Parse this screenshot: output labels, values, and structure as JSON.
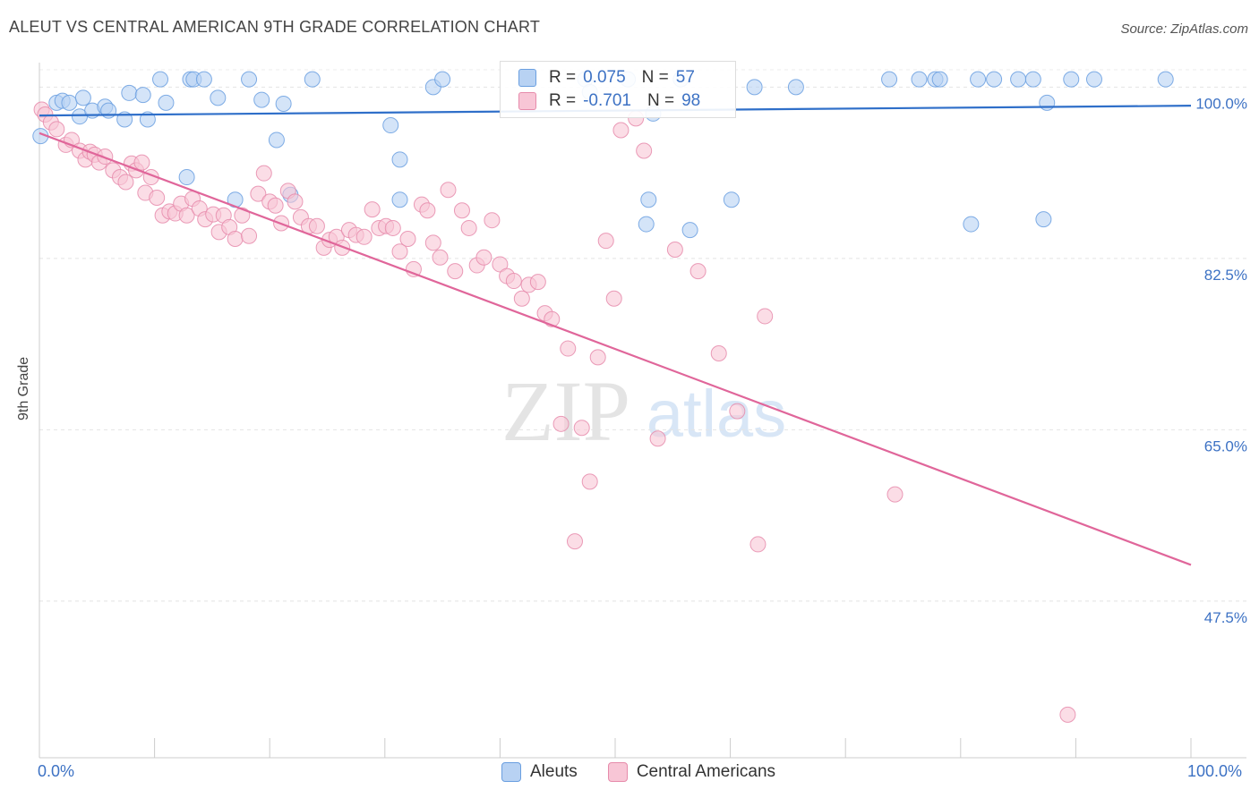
{
  "title": "ALEUT VS CENTRAL AMERICAN 9TH GRADE CORRELATION CHART",
  "source": "Source: ZipAtlas.com",
  "watermark": {
    "zip": "ZIP",
    "atlas": "atlas"
  },
  "colors": {
    "aleut": "#6a9fe0",
    "aleut_fill": "#b8d2f3",
    "aleut_line": "#2f6fc9",
    "central": "#e68bab",
    "central_fill": "#f8c6d6",
    "central_line": "#e0669a",
    "tick_label": "#3d72c4"
  },
  "legend": {
    "rows": [
      {
        "r_label": "R =",
        "r_value": "0.075",
        "n_label": "N =",
        "n_value": "57"
      },
      {
        "r_label": "R =",
        "r_value": "-0.701",
        "n_label": "N =",
        "n_value": "98"
      }
    ],
    "bottom": [
      "Aleuts",
      "Central Americans"
    ]
  },
  "chart_data": {
    "type": "scatter",
    "title": "ALEUT VS CENTRAL AMERICAN 9TH GRADE CORRELATION CHART",
    "xlabel": "",
    "ylabel": "9th Grade",
    "xlim": [
      0,
      100
    ],
    "ylim": [
      31.5,
      102.5
    ],
    "x_tick_labels": [
      "0.0%",
      "100.0%"
    ],
    "y_ticks": [
      {
        "value": 100,
        "label": "100.0%"
      },
      {
        "value": 82.5,
        "label": "82.5%"
      },
      {
        "value": 65,
        "label": "65.0%"
      },
      {
        "value": 47.5,
        "label": "47.5%"
      }
    ],
    "grid": true,
    "series": [
      {
        "name": "Aleuts",
        "r": 0.075,
        "n": 57,
        "trend": {
          "x": [
            0,
            100
          ],
          "y": [
            97.1,
            98.1
          ]
        },
        "points": [
          [
            0.1,
            95
          ],
          [
            1.5,
            98.4
          ],
          [
            2,
            98.6
          ],
          [
            2.6,
            98.4
          ],
          [
            3.5,
            97
          ],
          [
            3.8,
            98.9
          ],
          [
            4.6,
            97.6
          ],
          [
            5.7,
            98
          ],
          [
            6,
            97.6
          ],
          [
            7.4,
            96.7
          ],
          [
            7.8,
            99.4
          ],
          [
            9,
            99.2
          ],
          [
            9.4,
            96.7
          ],
          [
            10.5,
            100.8
          ],
          [
            11,
            98.4
          ],
          [
            13.1,
            100.8
          ],
          [
            13.4,
            100.8
          ],
          [
            14.3,
            100.8
          ],
          [
            15.5,
            98.9
          ],
          [
            18.2,
            100.8
          ],
          [
            19.3,
            98.7
          ],
          [
            20.6,
            94.6
          ],
          [
            21.2,
            98.3
          ],
          [
            23.7,
            100.8
          ],
          [
            30.5,
            96.1
          ],
          [
            31.3,
            92.6
          ],
          [
            34.2,
            100
          ],
          [
            35,
            100.8
          ],
          [
            47.4,
            100.8
          ],
          [
            47.8,
            99.5
          ],
          [
            51.1,
            100.8
          ],
          [
            53.3,
            97.3
          ],
          [
            55.7,
            100.8
          ],
          [
            62.1,
            100
          ],
          [
            65.7,
            100
          ],
          [
            73.8,
            100.8
          ],
          [
            76.4,
            100.8
          ],
          [
            77.8,
            100.8
          ],
          [
            78.2,
            100.8
          ],
          [
            81.5,
            100.8
          ],
          [
            82.9,
            100.8
          ],
          [
            85,
            100.8
          ],
          [
            86.3,
            100.8
          ],
          [
            87.5,
            98.4
          ],
          [
            89.6,
            100.8
          ],
          [
            91.6,
            100.8
          ],
          [
            97.8,
            100.8
          ],
          [
            17,
            88.5
          ],
          [
            12.8,
            90.8
          ],
          [
            21.8,
            89
          ],
          [
            31.3,
            88.5
          ],
          [
            52.9,
            88.5
          ],
          [
            52.7,
            86
          ],
          [
            56.5,
            85.4
          ],
          [
            60.1,
            88.5
          ],
          [
            80.9,
            86
          ],
          [
            87.2,
            86.5
          ]
        ]
      },
      {
        "name": "Central Americans",
        "r": -0.701,
        "n": 98,
        "trend": {
          "x": [
            0,
            100
          ],
          "y": [
            95.3,
            51.2
          ]
        },
        "points": [
          [
            0.2,
            97.7
          ],
          [
            0.5,
            97.2
          ],
          [
            1,
            96.4
          ],
          [
            1.5,
            95.7
          ],
          [
            2.3,
            94.1
          ],
          [
            2.8,
            94.6
          ],
          [
            3.5,
            93.5
          ],
          [
            4,
            92.6
          ],
          [
            4.4,
            93.4
          ],
          [
            4.8,
            93.1
          ],
          [
            5.2,
            92.3
          ],
          [
            5.7,
            92.9
          ],
          [
            6.4,
            91.5
          ],
          [
            7,
            90.8
          ],
          [
            7.5,
            90.3
          ],
          [
            8,
            92.2
          ],
          [
            8.4,
            91.5
          ],
          [
            8.9,
            92.3
          ],
          [
            9.2,
            89.2
          ],
          [
            9.7,
            90.8
          ],
          [
            10.2,
            88.7
          ],
          [
            10.7,
            86.9
          ],
          [
            11.3,
            87.3
          ],
          [
            11.8,
            87.1
          ],
          [
            12.3,
            88.1
          ],
          [
            12.8,
            86.9
          ],
          [
            13.3,
            88.6
          ],
          [
            13.9,
            87.6
          ],
          [
            14.4,
            86.5
          ],
          [
            15.1,
            87
          ],
          [
            15.6,
            85.2
          ],
          [
            16,
            86.9
          ],
          [
            16.5,
            85.7
          ],
          [
            17,
            84.5
          ],
          [
            17.6,
            86.9
          ],
          [
            18.2,
            84.8
          ],
          [
            19,
            89.1
          ],
          [
            19.5,
            91.2
          ],
          [
            20,
            88.3
          ],
          [
            20.5,
            87.9
          ],
          [
            21,
            86.1
          ],
          [
            21.6,
            89.4
          ],
          [
            22.2,
            88.3
          ],
          [
            22.7,
            86.7
          ],
          [
            23.4,
            85.8
          ],
          [
            24.1,
            85.8
          ],
          [
            24.7,
            83.6
          ],
          [
            25.2,
            84.4
          ],
          [
            25.8,
            84.7
          ],
          [
            26.3,
            83.6
          ],
          [
            26.9,
            85.4
          ],
          [
            27.5,
            84.9
          ],
          [
            28.2,
            84.7
          ],
          [
            28.9,
            87.5
          ],
          [
            29.5,
            85.6
          ],
          [
            30.1,
            85.8
          ],
          [
            30.7,
            85.6
          ],
          [
            31.3,
            83.2
          ],
          [
            32,
            84.5
          ],
          [
            32.5,
            81.4
          ],
          [
            33.2,
            88
          ],
          [
            33.7,
            87.4
          ],
          [
            34.2,
            84.1
          ],
          [
            34.8,
            82.6
          ],
          [
            35.5,
            89.5
          ],
          [
            36.1,
            81.2
          ],
          [
            36.7,
            87.4
          ],
          [
            37.3,
            85.6
          ],
          [
            38,
            81.8
          ],
          [
            38.6,
            82.6
          ],
          [
            39.3,
            86.4
          ],
          [
            40,
            81.9
          ],
          [
            40.6,
            80.7
          ],
          [
            41.2,
            80.2
          ],
          [
            41.9,
            78.4
          ],
          [
            42.5,
            79.8
          ],
          [
            43.3,
            80.1
          ],
          [
            43.9,
            76.9
          ],
          [
            44.5,
            76.3
          ],
          [
            45.3,
            65.6
          ],
          [
            45.9,
            73.3
          ],
          [
            46.5,
            53.6
          ],
          [
            47.1,
            65.2
          ],
          [
            47.8,
            59.7
          ],
          [
            48.5,
            72.4
          ],
          [
            49.2,
            84.3
          ],
          [
            49.9,
            78.4
          ],
          [
            50.5,
            95.6
          ],
          [
            51.8,
            96.8
          ],
          [
            52.5,
            93.5
          ],
          [
            53.7,
            64.1
          ],
          [
            55.2,
            83.4
          ],
          [
            57.2,
            81.2
          ],
          [
            59,
            72.8
          ],
          [
            60.6,
            66.9
          ],
          [
            62.4,
            53.3
          ],
          [
            63,
            76.6
          ],
          [
            74.3,
            58.4
          ],
          [
            89.3,
            35.9
          ]
        ]
      }
    ]
  }
}
